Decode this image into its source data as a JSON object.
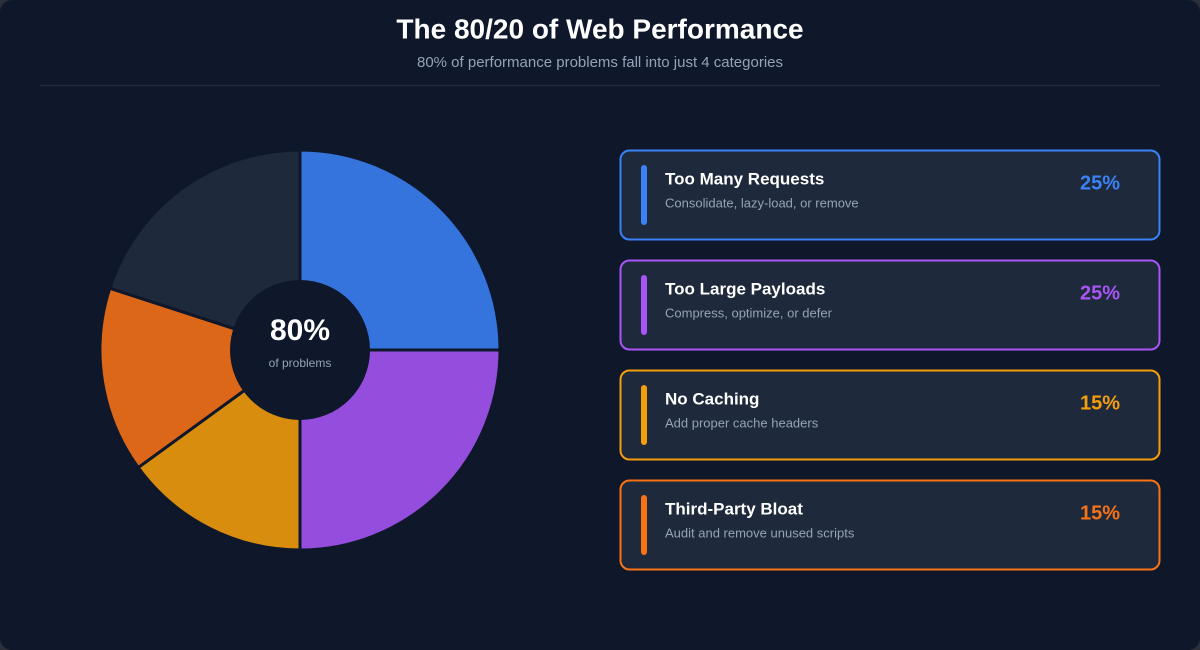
{
  "chart_data": {
    "type": "pie",
    "title": "The 80/20 of Web Performance",
    "subtitle": "80% of performance problems fall into just 4 categories",
    "center_label": "80%",
    "center_caption": "of problems",
    "categories": [
      "Too Many Requests",
      "Too Large Payloads",
      "No Caching",
      "Third-Party Bloat",
      null
    ],
    "descriptions": [
      "Consolidate, lazy-load, or remove",
      "Compress, optimize, or defer",
      "Add proper cache headers",
      "Audit and remove unused scripts",
      null
    ],
    "values": [
      25,
      25,
      15,
      15,
      20
    ],
    "value_labels": [
      "25%",
      "25%",
      "15%",
      "15%",
      null
    ],
    "colors": [
      "#3b82f6",
      "#a855f7",
      "#f59e0b",
      "#f97316",
      "#1e293b"
    ]
  }
}
